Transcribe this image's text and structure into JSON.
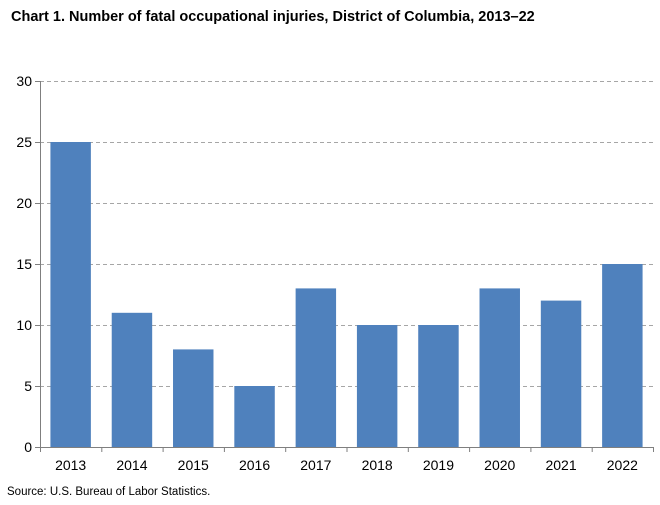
{
  "title": "Chart 1. Number of fatal occupational injuries,  District  of Columbia, 2013–22",
  "source": "Source: U.S. Bureau of Labor Statistics.",
  "colors": {
    "bar": "#4f81bd",
    "gridline": "#a6a6a6",
    "axis": "#7f7f7f"
  },
  "chart_data": {
    "type": "bar",
    "title": "Chart 1. Number of fatal occupational injuries,  District  of Columbia, 2013–22",
    "xlabel": "",
    "ylabel": "",
    "categories": [
      "2013",
      "2014",
      "2015",
      "2016",
      "2017",
      "2018",
      "2019",
      "2020",
      "2021",
      "2022"
    ],
    "values": [
      25,
      11,
      8,
      5,
      13,
      10,
      10,
      13,
      12,
      15
    ],
    "ylim": [
      0,
      30
    ],
    "yticks": [
      0,
      5,
      10,
      15,
      20,
      25,
      30
    ],
    "grid": "horizontal dashed",
    "legend": "none"
  }
}
